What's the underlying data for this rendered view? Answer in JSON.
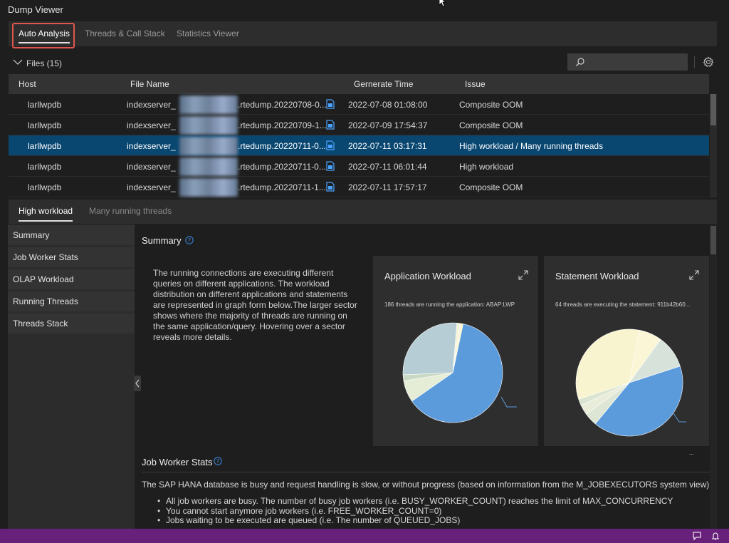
{
  "app": {
    "title": "Dump Viewer"
  },
  "main_tabs": [
    {
      "label": "Auto Analysis",
      "active": true
    },
    {
      "label": "Threads & Call Stack",
      "active": false
    },
    {
      "label": "Statistics Viewer",
      "active": false
    }
  ],
  "files": {
    "label": "Files (15)",
    "search": {
      "value": "",
      "placeholder": ""
    },
    "columns": [
      "Host",
      "File Name",
      "Gernerate Time",
      "Issue"
    ],
    "rows": [
      {
        "host": "larllwpdb",
        "file_prefix": "indexserver_",
        "file_suffix": ".rtedump.20220708-0...",
        "time": "2022-07-08 01:08:00",
        "issue": "Composite OOM",
        "selected": false
      },
      {
        "host": "larllwpdb",
        "file_prefix": "indexserver_",
        "file_suffix": ".rtedump.20220709-1...",
        "time": "2022-07-09 17:54:37",
        "issue": "Composite OOM",
        "selected": false
      },
      {
        "host": "larllwpdb",
        "file_prefix": "indexserver_",
        "file_suffix": ".rtedump.20220711-0...",
        "time": "2022-07-11 03:17:31",
        "issue": "High workload / Many running threads",
        "selected": true
      },
      {
        "host": "larllwpdb",
        "file_prefix": "indexserver_",
        "file_suffix": ".rtedump.20220711-0...",
        "time": "2022-07-11 06:01:44",
        "issue": "High workload",
        "selected": false
      },
      {
        "host": "larllwpdb",
        "file_prefix": "indexserver_",
        "file_suffix": ".rtedump.20220711-1...",
        "time": "2022-07-11 17:57:17",
        "issue": "Composite OOM",
        "selected": false
      }
    ]
  },
  "issue_tabs": [
    {
      "label": "High workload",
      "active": true
    },
    {
      "label": "Many running threads",
      "active": false
    }
  ],
  "sidebar": {
    "items": [
      {
        "label": "Summary"
      },
      {
        "label": "Job Worker Stats"
      },
      {
        "label": "OLAP Workload"
      },
      {
        "label": "Running Threads"
      },
      {
        "label": "Threads Stack"
      }
    ]
  },
  "summary": {
    "title": "Summary",
    "text": "The running connections are executing different queries on different applications. The workload distribution on different applications and statements are represented in graph form below.The larger sector shows where the majority of threads are running on the same application/query. Hovering over a sector reveals more details.",
    "cards": [
      {
        "title": "Application Workload",
        "subtitle": "186 threads are running the application: ABAP:LWP",
        "legend": "",
        "slices": [
          {
            "value": 0.62,
            "color": "#5b9bdc"
          },
          {
            "value": 0.07,
            "color": "#e6edd6"
          },
          {
            "value": 0.02,
            "color": "#c9d9c4"
          },
          {
            "value": 0.27,
            "color": "#b7cdd6"
          },
          {
            "value": 0.01,
            "color": "#f4f2d8"
          },
          {
            "value": 0.01,
            "color": "#fbf6d2"
          }
        ]
      },
      {
        "title": "Statement Workload",
        "subtitle": "64 threads are executing the statement: 911b42b60...",
        "legend": "...",
        "slices": [
          {
            "value": 0.41,
            "color": "#5b9bdc"
          },
          {
            "value": 0.04,
            "color": "#dde6d4"
          },
          {
            "value": 0.03,
            "color": "#e8ecd8"
          },
          {
            "value": 0.02,
            "color": "#dbe4d0"
          },
          {
            "value": 0.33,
            "color": "#f8f4cf"
          },
          {
            "value": 0.07,
            "color": "#faf6d6"
          },
          {
            "value": 0.1,
            "color": "#d6e2da"
          }
        ]
      }
    ]
  },
  "job_worker": {
    "title": "Job Worker Stats",
    "intro": "The SAP HANA database is busy and request handling is slow, or without progress (based on information from the M_JOBEXECUTORS system view):",
    "bullets": [
      "All job workers are busy. The number of busy job workers (i.e. BUSY_WORKER_COUNT) reaches the limit of MAX_CONCURRENCY",
      "You cannot start anymore job workers (i.e. FREE_WORKER_COUNT=0)",
      "Jobs waiting to be executed are queued (i.e. The number of QUEUED_JOBS)"
    ]
  },
  "colors": {
    "accent": "#094771",
    "statusbar": "#68217a",
    "highlight": "#e0564b"
  }
}
